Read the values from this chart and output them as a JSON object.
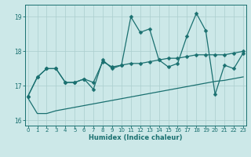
{
  "xlabel": "Humidex (Indice chaleur)",
  "bg_color": "#cce8e8",
  "line_color": "#1a7070",
  "grid_color": "#aacece",
  "x": [
    0,
    1,
    2,
    3,
    4,
    5,
    6,
    7,
    8,
    9,
    10,
    11,
    12,
    13,
    14,
    15,
    16,
    17,
    18,
    19,
    20,
    21,
    22,
    23
  ],
  "line1": [
    16.7,
    17.25,
    17.5,
    17.5,
    17.1,
    17.1,
    17.2,
    16.9,
    17.75,
    17.5,
    17.6,
    19.0,
    18.55,
    18.65,
    17.75,
    17.55,
    17.65,
    18.45,
    19.1,
    18.6,
    16.75,
    17.6,
    17.5,
    17.95
  ],
  "line2": [
    16.7,
    17.25,
    17.5,
    17.5,
    17.1,
    17.1,
    17.2,
    17.1,
    17.7,
    17.55,
    17.6,
    17.65,
    17.65,
    17.7,
    17.75,
    17.8,
    17.8,
    17.85,
    17.9,
    17.9,
    17.9,
    17.9,
    17.95,
    18.0
  ],
  "line3": [
    16.65,
    16.2,
    16.2,
    16.28,
    16.33,
    16.38,
    16.43,
    16.48,
    16.53,
    16.58,
    16.63,
    16.68,
    16.73,
    16.78,
    16.83,
    16.88,
    16.93,
    16.98,
    17.03,
    17.08,
    17.13,
    17.16,
    17.21,
    17.26
  ],
  "ylim": [
    15.85,
    19.35
  ],
  "yticks": [
    16,
    17,
    18,
    19
  ],
  "xticks": [
    0,
    1,
    2,
    3,
    4,
    5,
    6,
    7,
    8,
    9,
    10,
    11,
    12,
    13,
    14,
    15,
    16,
    17,
    18,
    19,
    20,
    21,
    22,
    23
  ],
  "xlim": [
    -0.3,
    23.3
  ]
}
